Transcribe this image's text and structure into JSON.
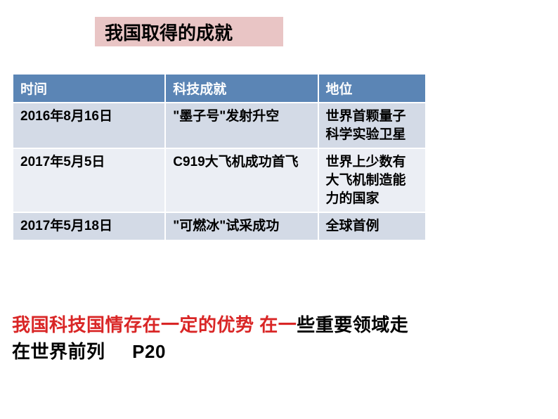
{
  "title": "我国取得的成就",
  "table": {
    "headers": [
      "时间",
      "科技成就",
      "地位"
    ],
    "rows": [
      [
        "2016年8月16日",
        "\"墨子号\"发射升空",
        "世界首颗量子科学实验卫星"
      ],
      [
        "2017年5月5日",
        "C919大飞机成功首飞",
        "世界上少数有大飞机制造能力的国家"
      ],
      [
        "2017年5月18日",
        "\"可燃冰\"试采成功",
        "全球首例"
      ]
    ],
    "header_bg": "#5b85b5",
    "header_text_color": "#ffffff",
    "row_odd_bg": "#d3dae6",
    "row_even_bg": "#ebeef4",
    "border_color": "#ffffff",
    "font_size": 19
  },
  "title_style": {
    "bg_color": "#e9c5c5",
    "font_size": 26,
    "text_color": "#000000"
  },
  "footer": {
    "red_part": "我国科技国情存在一定的优势  在一",
    "black_part1": "些重要领域走在世界前列",
    "black_part2": "P20",
    "red_color": "#d92626",
    "black_color": "#000000",
    "font_size": 26
  }
}
